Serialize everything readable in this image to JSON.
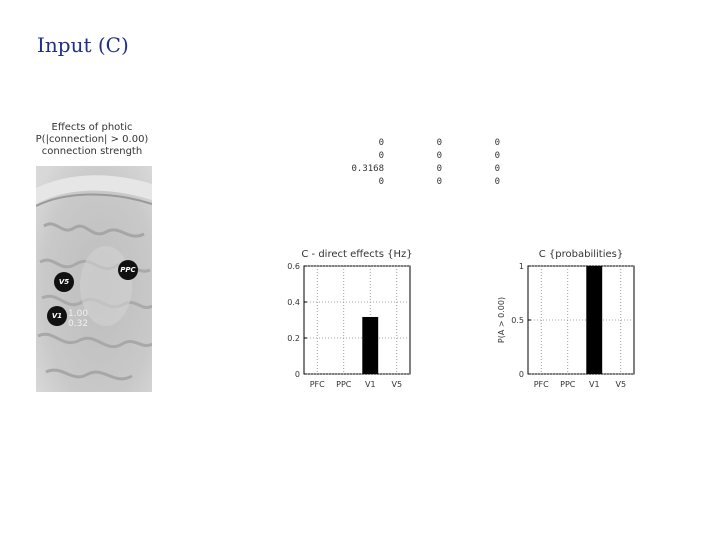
{
  "slide": {
    "title": "Input (C)"
  },
  "brain_panel": {
    "caption_lines": [
      "Effects of photic",
      "P(|connection| > 0.00)",
      "connection strength"
    ],
    "nodes": {
      "v5": "V5",
      "ppc": "PPC",
      "v1": "V1"
    },
    "connection_values": [
      "1.00",
      "0.32"
    ]
  },
  "matrix": {
    "rows": [
      [
        "0",
        "0",
        "0"
      ],
      [
        "0",
        "0",
        "0"
      ],
      [
        "0.3168",
        "0",
        "0"
      ],
      [
        "0",
        "0",
        "0"
      ]
    ]
  },
  "chart_data": [
    {
      "type": "bar",
      "title": "C - direct effects {Hz}",
      "categories": [
        "PFC",
        "PPC",
        "V1",
        "V5"
      ],
      "values": [
        0,
        0,
        0.3168,
        0
      ],
      "ylim": [
        0,
        0.6
      ],
      "yticks": [
        0,
        0.2,
        0.4,
        0.6
      ],
      "ylabel": "",
      "grid": true
    },
    {
      "type": "bar",
      "title": "C {probabilities}",
      "categories": [
        "PFC",
        "PPC",
        "V1",
        "V5"
      ],
      "values": [
        0,
        0,
        1,
        0
      ],
      "ylim": [
        0,
        1
      ],
      "yticks": [
        0,
        0.5,
        1
      ],
      "ylabel": "P(A > 0.00)",
      "grid": true
    }
  ]
}
